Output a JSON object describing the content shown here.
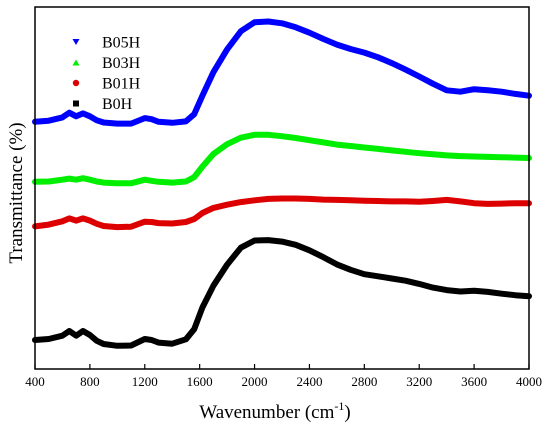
{
  "chart_data": {
    "type": "line",
    "xlabel": "Wavenumber (cm",
    "xlabel_sup": "-1",
    "xlabel_close": ")",
    "ylabel": "Transmittance (%)",
    "xlim": [
      400,
      4000
    ],
    "ylim": [
      0,
      100
    ],
    "xticks": [
      400,
      800,
      1200,
      1600,
      2000,
      2400,
      2800,
      3200,
      3600,
      4000
    ],
    "y_tick_labels": false,
    "grid": false,
    "legend_position": "top-left",
    "series": [
      {
        "name": "B05H",
        "color": "#0000ff",
        "marker": "triangle-down",
        "x": [
          400,
          500,
          600,
          650,
          700,
          750,
          800,
          850,
          900,
          1000,
          1100,
          1200,
          1250,
          1300,
          1400,
          1500,
          1560,
          1620,
          1700,
          1800,
          1900,
          2000,
          2100,
          2200,
          2300,
          2400,
          2500,
          2600,
          2700,
          2800,
          2900,
          3000,
          3100,
          3200,
          3300,
          3400,
          3500,
          3600,
          3700,
          3800,
          3900,
          4000
        ],
        "y": [
          68.3,
          68.6,
          69.5,
          70.8,
          69.8,
          70.6,
          69.8,
          68.7,
          68.1,
          67.8,
          67.8,
          69.3,
          69.0,
          68.3,
          68.0,
          68.4,
          70.4,
          75.5,
          82.0,
          88.3,
          93.3,
          95.8,
          96.0,
          95.5,
          94.4,
          92.9,
          91.2,
          89.6,
          88.4,
          87.4,
          86.1,
          84.5,
          82.7,
          80.8,
          78.8,
          77.0,
          76.6,
          77.3,
          77.0,
          76.6,
          76.0,
          75.5
        ]
      },
      {
        "name": "B03H",
        "color": "#00ee00",
        "marker": "triangle-up",
        "x": [
          400,
          500,
          600,
          650,
          700,
          750,
          800,
          850,
          900,
          1000,
          1100,
          1200,
          1250,
          1300,
          1400,
          1500,
          1560,
          1620,
          1700,
          1800,
          1900,
          2000,
          2100,
          2200,
          2300,
          2400,
          2500,
          2600,
          2700,
          2800,
          2900,
          3000,
          3100,
          3200,
          3300,
          3400,
          3500,
          3600,
          3700,
          3800,
          3900,
          4000
        ],
        "y": [
          51.7,
          51.8,
          52.3,
          52.6,
          52.3,
          52.7,
          52.3,
          51.8,
          51.5,
          51.3,
          51.3,
          52.3,
          52.0,
          51.7,
          51.5,
          51.8,
          53.0,
          55.9,
          59.4,
          62.1,
          63.9,
          64.7,
          64.7,
          64.3,
          63.8,
          63.2,
          62.6,
          62.0,
          61.6,
          61.2,
          60.8,
          60.4,
          60.0,
          59.6,
          59.3,
          59.0,
          58.8,
          58.7,
          58.6,
          58.5,
          58.4,
          58.3
        ]
      },
      {
        "name": "B01H",
        "color": "#dd0000",
        "marker": "circle",
        "x": [
          400,
          500,
          600,
          650,
          700,
          750,
          800,
          850,
          900,
          1000,
          1100,
          1200,
          1250,
          1300,
          1400,
          1500,
          1560,
          1620,
          1700,
          1800,
          1900,
          2000,
          2100,
          2200,
          2300,
          2400,
          2500,
          2600,
          2700,
          2800,
          2900,
          3000,
          3100,
          3200,
          3300,
          3400,
          3500,
          3600,
          3700,
          3800,
          3900,
          4000
        ],
        "y": [
          39.4,
          39.9,
          40.8,
          41.6,
          41.0,
          41.6,
          41.0,
          40.1,
          39.5,
          39.2,
          39.3,
          40.7,
          40.6,
          40.3,
          40.2,
          40.6,
          41.4,
          43.1,
          44.5,
          45.4,
          46.1,
          46.6,
          47.0,
          47.1,
          47.1,
          47.0,
          46.8,
          46.7,
          46.6,
          46.5,
          46.4,
          46.3,
          46.3,
          46.2,
          46.4,
          46.7,
          46.3,
          45.8,
          45.6,
          45.7,
          45.8,
          45.8
        ]
      },
      {
        "name": "B0H",
        "color": "#000000",
        "marker": "square",
        "x": [
          400,
          500,
          600,
          650,
          700,
          750,
          800,
          850,
          900,
          1000,
          1100,
          1200,
          1250,
          1300,
          1400,
          1500,
          1560,
          1620,
          1700,
          1800,
          1900,
          2000,
          2100,
          2200,
          2300,
          2400,
          2500,
          2600,
          2700,
          2800,
          2900,
          3000,
          3100,
          3200,
          3300,
          3400,
          3500,
          3600,
          3700,
          3800,
          3900,
          4000
        ],
        "y": [
          8.0,
          8.3,
          9.2,
          10.5,
          9.2,
          10.5,
          9.4,
          7.8,
          6.9,
          6.4,
          6.5,
          8.3,
          8.0,
          7.3,
          7.0,
          8.2,
          11.0,
          17.0,
          23.0,
          28.8,
          33.5,
          35.5,
          35.6,
          35.2,
          34.3,
          32.8,
          30.9,
          28.9,
          27.4,
          26.2,
          25.6,
          25.0,
          24.4,
          23.5,
          22.5,
          21.8,
          21.4,
          21.6,
          21.3,
          20.8,
          20.4,
          20.1
        ]
      }
    ]
  }
}
